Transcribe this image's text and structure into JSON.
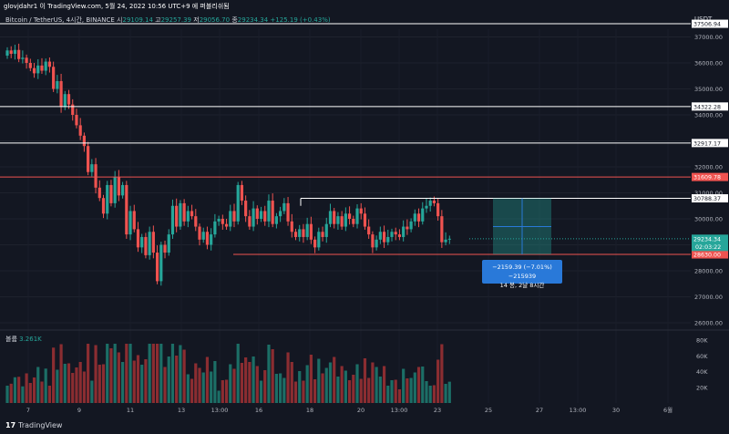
{
  "header": {
    "author_line": "glovjdahr1 이 TradingView.com, 5월 24, 2022 10:56 UTC+9 에 퍼블리쉬됨",
    "symbol": "Bitcoin / TetherUS, 4시간, BINANCE",
    "open_label": "시",
    "open_value": "29109.14",
    "high_label": "고",
    "high_value": "29257.39",
    "low_label": "저",
    "low_value": "29056.70",
    "close_label": "종",
    "close_value": "29234.34",
    "change": "+125.19 (+0.43%)"
  },
  "currency": "USDT",
  "volume": {
    "label": "볼륨",
    "value": "3.261K"
  },
  "brand": {
    "logo": "17",
    "name": "TradingView"
  },
  "measure_tooltip": {
    "line1": "−2159.39 (−7.01%) −215939",
    "line2": "14 봉, 2날 8시간"
  },
  "colors": {
    "up": "#26a69a",
    "down": "#ef5350",
    "bg": "#131722",
    "accent": "#2979d9"
  },
  "chart_data": {
    "type": "candlestick",
    "ylim": [
      25700,
      37700
    ],
    "y_ticks": [
      "26000.00",
      "27000.00",
      "28000.00",
      "29000.00",
      "30000.00",
      "31000.00",
      "32000.00",
      "33000.00",
      "34000.00",
      "35000.00",
      "36000.00",
      "37000.00"
    ],
    "volume_ticks": [
      "20K",
      "40K",
      "60K",
      "80K"
    ],
    "x_ticks": [
      "7",
      "9",
      "11",
      "13",
      "13:00",
      "16",
      "18",
      "20",
      "13:00",
      "23",
      "25",
      "27",
      "13:00",
      "30",
      "6월"
    ],
    "horizontal_levels": [
      {
        "value": 37506.94,
        "label": "37506.94",
        "color": "#ffffff"
      },
      {
        "value": 34322.28,
        "label": "34322.28",
        "color": "#ffffff"
      },
      {
        "value": 32917.17,
        "label": "32917.17",
        "color": "#ffffff"
      },
      {
        "value": 31609.78,
        "label": "31609.78",
        "color": "#ef5350"
      },
      {
        "value": 30788.37,
        "label": "30788.37",
        "color": "#ffffff"
      },
      {
        "value": 28630.0,
        "label": "28630.00",
        "color": "#ef5350"
      }
    ],
    "last_price": {
      "value": 29234.34,
      "label": "29234.34",
      "countdown": "02:03:22"
    }
  }
}
